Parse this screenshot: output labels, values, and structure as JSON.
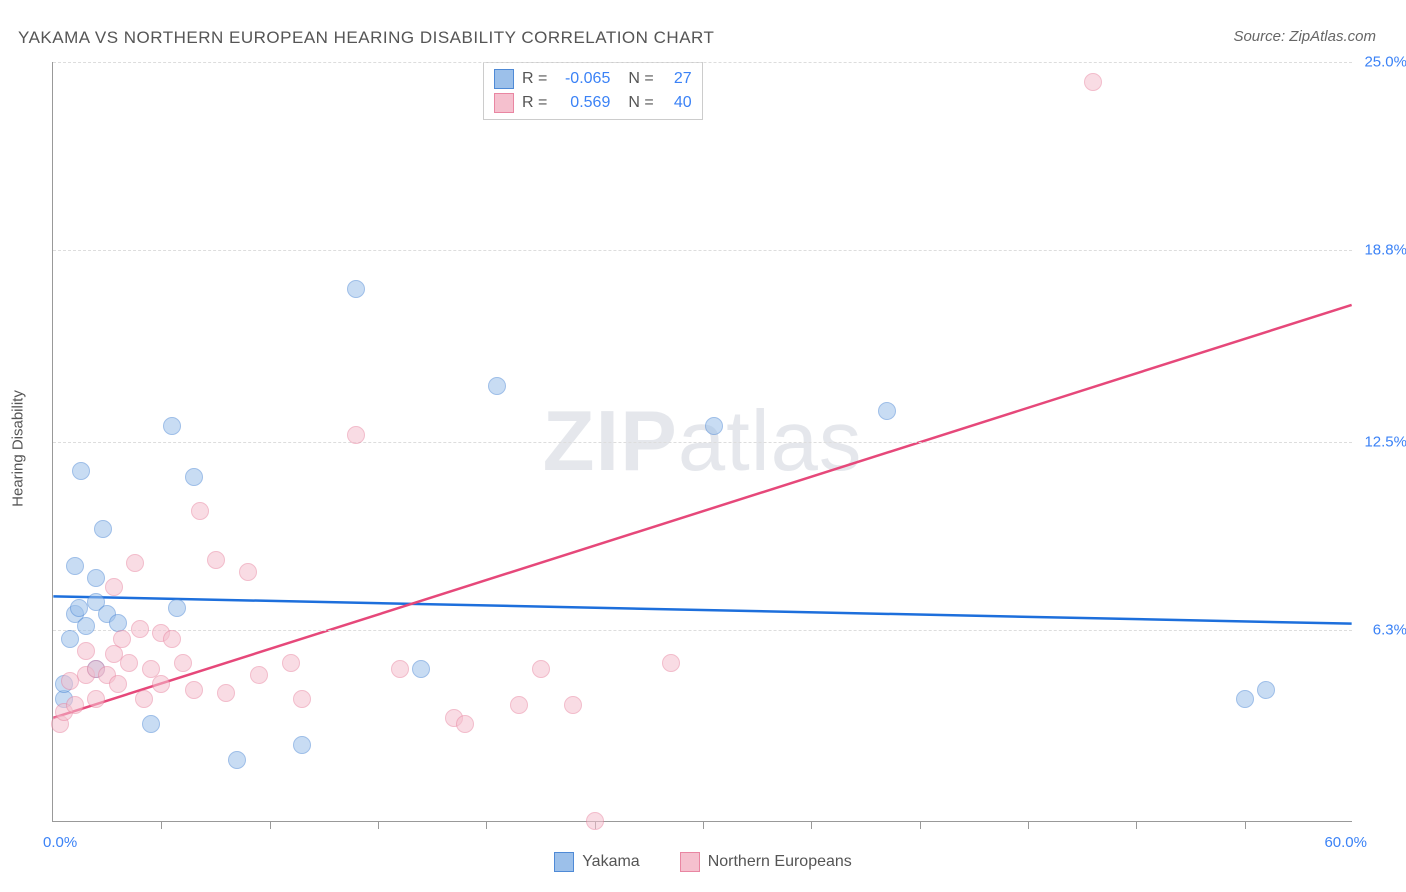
{
  "title": "YAKAMA VS NORTHERN EUROPEAN HEARING DISABILITY CORRELATION CHART",
  "source": "Source: ZipAtlas.com",
  "y_axis_label": "Hearing Disability",
  "watermark": {
    "bold": "ZIP",
    "light": "atlas"
  },
  "chart": {
    "type": "scatter",
    "xlim": [
      0,
      60
    ],
    "ylim": [
      0,
      25
    ],
    "x_min_label": "0.0%",
    "x_max_label": "60.0%",
    "y_ticks": [
      {
        "value": 6.3,
        "label": "6.3%"
      },
      {
        "value": 12.5,
        "label": "12.5%"
      },
      {
        "value": 18.8,
        "label": "18.8%"
      },
      {
        "value": 25.0,
        "label": "25.0%"
      }
    ],
    "x_tick_positions": [
      5,
      10,
      15,
      20,
      25,
      30,
      35,
      40,
      45,
      50,
      55
    ],
    "background_color": "#ffffff",
    "grid_color": "#dddddd",
    "marker_radius": 9,
    "marker_opacity": 0.55,
    "line_width": 2.5,
    "series": [
      {
        "name": "Yakama",
        "fill": "#9cc0ea",
        "stroke": "#4f8ad6",
        "line_color": "#1d6fdc",
        "R": "-0.065",
        "N": "27",
        "trend": {
          "x1": 0,
          "y1": 7.4,
          "x2": 60,
          "y2": 6.5
        },
        "points": [
          {
            "x": 0.5,
            "y": 4.0
          },
          {
            "x": 0.5,
            "y": 4.5
          },
          {
            "x": 0.8,
            "y": 6.0
          },
          {
            "x": 1.0,
            "y": 6.8
          },
          {
            "x": 1.0,
            "y": 8.4
          },
          {
            "x": 1.2,
            "y": 7.0
          },
          {
            "x": 1.3,
            "y": 11.5
          },
          {
            "x": 1.5,
            "y": 6.4
          },
          {
            "x": 2.0,
            "y": 7.2
          },
          {
            "x": 2.0,
            "y": 8.0
          },
          {
            "x": 2.3,
            "y": 9.6
          },
          {
            "x": 2.5,
            "y": 6.8
          },
          {
            "x": 3.0,
            "y": 6.5
          },
          {
            "x": 4.5,
            "y": 3.2
          },
          {
            "x": 5.5,
            "y": 13.0
          },
          {
            "x": 5.7,
            "y": 7.0
          },
          {
            "x": 6.5,
            "y": 11.3
          },
          {
            "x": 8.5,
            "y": 2.0
          },
          {
            "x": 11.5,
            "y": 2.5
          },
          {
            "x": 14.0,
            "y": 17.5
          },
          {
            "x": 17.0,
            "y": 5.0
          },
          {
            "x": 20.5,
            "y": 14.3
          },
          {
            "x": 30.5,
            "y": 13.0
          },
          {
            "x": 38.5,
            "y": 13.5
          },
          {
            "x": 55.0,
            "y": 4.0
          },
          {
            "x": 56.0,
            "y": 4.3
          },
          {
            "x": 2.0,
            "y": 5.0
          }
        ]
      },
      {
        "name": "Northern Europeans",
        "fill": "#f5c0ce",
        "stroke": "#e986a2",
        "line_color": "#e6487a",
        "R": "0.569",
        "N": "40",
        "trend": {
          "x1": 0,
          "y1": 3.4,
          "x2": 60,
          "y2": 17.0
        },
        "points": [
          {
            "x": 0.3,
            "y": 3.2
          },
          {
            "x": 0.5,
            "y": 3.6
          },
          {
            "x": 0.8,
            "y": 4.6
          },
          {
            "x": 1.0,
            "y": 3.8
          },
          {
            "x": 1.5,
            "y": 4.8
          },
          {
            "x": 1.5,
            "y": 5.6
          },
          {
            "x": 2.0,
            "y": 4.0
          },
          {
            "x": 2.0,
            "y": 5.0
          },
          {
            "x": 2.5,
            "y": 4.8
          },
          {
            "x": 2.8,
            "y": 5.5
          },
          {
            "x": 2.8,
            "y": 7.7
          },
          {
            "x": 3.0,
            "y": 4.5
          },
          {
            "x": 3.2,
            "y": 6.0
          },
          {
            "x": 3.5,
            "y": 5.2
          },
          {
            "x": 3.8,
            "y": 8.5
          },
          {
            "x": 4.0,
            "y": 6.3
          },
          {
            "x": 4.2,
            "y": 4.0
          },
          {
            "x": 4.5,
            "y": 5.0
          },
          {
            "x": 5.0,
            "y": 4.5
          },
          {
            "x": 5.0,
            "y": 6.2
          },
          {
            "x": 5.5,
            "y": 6.0
          },
          {
            "x": 6.0,
            "y": 5.2
          },
          {
            "x": 6.8,
            "y": 10.2
          },
          {
            "x": 7.5,
            "y": 8.6
          },
          {
            "x": 8.0,
            "y": 4.2
          },
          {
            "x": 9.0,
            "y": 8.2
          },
          {
            "x": 9.5,
            "y": 4.8
          },
          {
            "x": 11.0,
            "y": 5.2
          },
          {
            "x": 11.5,
            "y": 4.0
          },
          {
            "x": 14.0,
            "y": 12.7
          },
          {
            "x": 16.0,
            "y": 5.0
          },
          {
            "x": 18.5,
            "y": 3.4
          },
          {
            "x": 19.0,
            "y": 3.2
          },
          {
            "x": 21.5,
            "y": 3.8
          },
          {
            "x": 22.5,
            "y": 5.0
          },
          {
            "x": 24.0,
            "y": 3.8
          },
          {
            "x": 25.0,
            "y": 0.0
          },
          {
            "x": 28.5,
            "y": 5.2
          },
          {
            "x": 48.0,
            "y": 24.3
          },
          {
            "x": 6.5,
            "y": 4.3
          }
        ]
      }
    ]
  },
  "stats_labels": {
    "R": "R =",
    "N": "N ="
  },
  "colors": {
    "title": "#555555",
    "axis_value": "#3b82f6",
    "axis_label": "#555555"
  }
}
